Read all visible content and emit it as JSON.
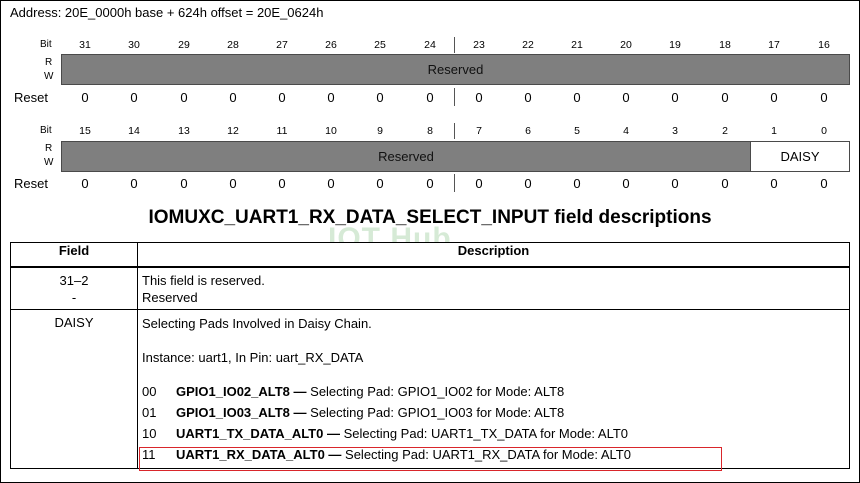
{
  "address": "Address: 20E_0000h base + 624h offset = 20E_0624h",
  "labels": {
    "bit": "Bit",
    "r": "R",
    "w": "W",
    "reset": "Reset"
  },
  "upper": {
    "bits": [
      "31",
      "30",
      "29",
      "28",
      "27",
      "26",
      "25",
      "24",
      "23",
      "22",
      "21",
      "20",
      "19",
      "18",
      "17",
      "16"
    ],
    "reserved": "Reserved",
    "reset": [
      "0",
      "0",
      "0",
      "0",
      "0",
      "0",
      "0",
      "0",
      "0",
      "0",
      "0",
      "0",
      "0",
      "0",
      "0",
      "0"
    ]
  },
  "lower": {
    "bits": [
      "15",
      "14",
      "13",
      "12",
      "11",
      "10",
      "9",
      "8",
      "7",
      "6",
      "5",
      "4",
      "3",
      "2",
      "1",
      "0"
    ],
    "reserved": "Reserved",
    "daisy": "DAISY",
    "reset": [
      "0",
      "0",
      "0",
      "0",
      "0",
      "0",
      "0",
      "0",
      "0",
      "0",
      "0",
      "0",
      "0",
      "0",
      "0",
      "0"
    ]
  },
  "title": "IOMUXC_UART1_RX_DATA_SELECT_INPUT field descriptions",
  "watermark": "IOT Hub",
  "table": {
    "headers": {
      "field": "Field",
      "description": "Description"
    },
    "row1": {
      "field_line1": "31–2",
      "field_line2": "-",
      "desc_line1": "This field is reserved.",
      "desc_line2": "Reserved"
    },
    "row2": {
      "field": "DAISY",
      "desc_line1": "Selecting Pads Involved in Daisy Chain.",
      "desc_line2": "Instance: uart1, In Pin: uart_RX_DATA",
      "options": [
        {
          "code": "00",
          "name": "GPIO1_IO02_ALT8 —",
          "text": " Selecting Pad: GPIO1_IO02 for Mode: ALT8"
        },
        {
          "code": "01",
          "name": "GPIO1_IO03_ALT8 —",
          "text": " Selecting Pad: GPIO1_IO03 for Mode: ALT8"
        },
        {
          "code": "10",
          "name": "UART1_TX_DATA_ALT0 —",
          "text": " Selecting Pad: UART1_TX_DATA for Mode: ALT0"
        },
        {
          "code": "11",
          "name": "UART1_RX_DATA_ALT0 —",
          "text": " Selecting Pad: UART1_RX_DATA for Mode: ALT0"
        }
      ]
    }
  },
  "highlight_color": "#d9262b"
}
